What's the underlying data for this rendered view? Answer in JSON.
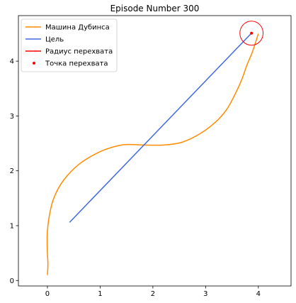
{
  "chart_data": {
    "type": "line",
    "title": "Episode Number 300",
    "xlabel": "",
    "ylabel": "",
    "xlim": [
      -0.55,
      4.62
    ],
    "ylim": [
      -0.1,
      4.83
    ],
    "grid": false,
    "legend_location": "top-left",
    "x_ticks": [
      0,
      1,
      2,
      3,
      4
    ],
    "y_ticks": [
      0,
      1,
      2,
      3,
      4
    ],
    "x_tick_labels": [
      "0",
      "1",
      "2",
      "3",
      "4"
    ],
    "y_tick_labels": [
      "0",
      "1",
      "2",
      "3",
      "4"
    ],
    "series": [
      {
        "name": "Машина Дубинса",
        "kind": "line",
        "color": "#ff8c00",
        "x": [
          0.0,
          0.01,
          0.0,
          -0.005,
          0.0,
          0.04,
          0.12,
          0.3,
          0.6,
          1.0,
          1.35,
          1.55,
          1.85,
          2.2,
          2.55,
          2.9,
          3.2,
          3.4,
          3.55,
          3.68,
          3.78,
          3.88,
          3.95,
          4.0
        ],
        "y": [
          0.1,
          0.3,
          0.5,
          0.7,
          0.9,
          1.2,
          1.5,
          1.82,
          2.12,
          2.35,
          2.46,
          2.48,
          2.47,
          2.47,
          2.52,
          2.68,
          2.9,
          3.12,
          3.38,
          3.65,
          3.92,
          4.15,
          4.35,
          4.5
        ]
      },
      {
        "name": "Цель",
        "kind": "line",
        "color": "#4169e1",
        "x": [
          0.42,
          3.87
        ],
        "y": [
          1.06,
          4.51
        ]
      },
      {
        "name": "Радиус перехвата",
        "kind": "circle",
        "color": "#ff0000",
        "center": [
          3.87,
          4.51
        ],
        "radius": 0.22
      },
      {
        "name": "Точка перехвата",
        "kind": "scatter",
        "color": "#ff0000",
        "x": [
          3.87
        ],
        "y": [
          4.51
        ]
      }
    ]
  }
}
